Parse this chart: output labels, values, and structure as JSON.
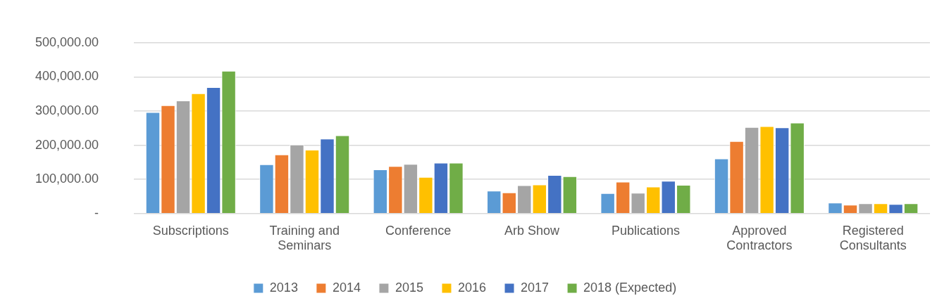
{
  "chart_data": {
    "type": "bar",
    "categories": [
      "Subscriptions",
      "Training and Seminars",
      "Conference",
      "Arb Show",
      "Publications",
      "Approved Contractors",
      "Registered Consultants"
    ],
    "series": [
      {
        "name": "2013",
        "color": "#5b9bd5",
        "values": [
          297000,
          144000,
          129000,
          67000,
          60000,
          161000,
          32000
        ]
      },
      {
        "name": "2014",
        "color": "#ed7d31",
        "values": [
          317000,
          173000,
          139000,
          62000,
          93000,
          212000,
          26000
        ]
      },
      {
        "name": "2015",
        "color": "#a5a5a5",
        "values": [
          331000,
          202000,
          145000,
          83000,
          61000,
          253000,
          30000
        ]
      },
      {
        "name": "2016",
        "color": "#ffc000",
        "values": [
          352000,
          187000,
          107000,
          85000,
          79000,
          256000,
          30000
        ]
      },
      {
        "name": "2017",
        "color": "#4472c4",
        "values": [
          370000,
          219000,
          149000,
          113000,
          96000,
          252000,
          28000
        ]
      },
      {
        "name": "2018 (Expected)",
        "color": "#70ad47",
        "values": [
          418000,
          229000,
          149000,
          109000,
          84000,
          266000,
          30000
        ]
      }
    ],
    "ylim": [
      0,
      500000
    ],
    "yticks": [
      {
        "value": 0,
        "label": "-"
      },
      {
        "value": 100000,
        "label": "100,000.00"
      },
      {
        "value": 200000,
        "label": "200,000.00"
      },
      {
        "value": 300000,
        "label": "300,000.00"
      },
      {
        "value": 400000,
        "label": "400,000.00"
      },
      {
        "value": 500000,
        "label": "500,000.00"
      }
    ],
    "grid": "y",
    "legend": "bottom"
  }
}
